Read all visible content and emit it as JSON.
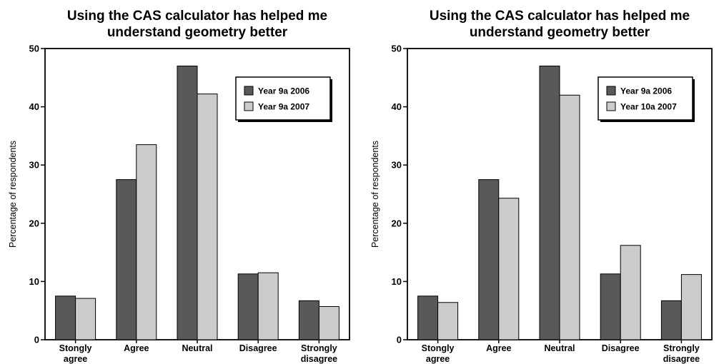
{
  "colors": {
    "series1": "#595959",
    "series2": "#cccccc",
    "axis": "#000000"
  },
  "chart_data": [
    {
      "type": "bar",
      "title": [
        "Using the CAS calculator has helped me",
        "understand geometry better"
      ],
      "ylabel": "Percentage of respondents",
      "xlabel": "",
      "ylim": [
        0,
        50
      ],
      "yticks": [
        0,
        10,
        20,
        30,
        40,
        50
      ],
      "categories": [
        [
          "Stongly",
          "agree"
        ],
        [
          "Agree"
        ],
        [
          "Neutral"
        ],
        [
          "Disagree"
        ],
        [
          "Strongly",
          "disagree"
        ]
      ],
      "series": [
        {
          "name": "Year 9a 2006",
          "values": [
            7.5,
            27.5,
            47,
            11.3,
            6.7
          ]
        },
        {
          "name": "Year 9a 2007",
          "values": [
            7.1,
            33.5,
            42.2,
            11.5,
            5.7
          ]
        }
      ],
      "legend": "top-right",
      "grid": false
    },
    {
      "type": "bar",
      "title": [
        "Using the CAS calculator has helped me",
        "understand geometry better"
      ],
      "ylabel": "Percentage of respondents",
      "xlabel": "",
      "ylim": [
        0,
        50
      ],
      "yticks": [
        0,
        10,
        20,
        30,
        40,
        50
      ],
      "categories": [
        [
          "Stongly",
          "agree"
        ],
        [
          "Agree"
        ],
        [
          "Neutral"
        ],
        [
          "Disagree"
        ],
        [
          "Strongly",
          "disagree"
        ]
      ],
      "series": [
        {
          "name": "Year 9a 2006",
          "values": [
            7.5,
            27.5,
            47,
            11.3,
            6.7
          ]
        },
        {
          "name": "Year 10a 2007",
          "values": [
            6.4,
            24.3,
            42,
            16.2,
            11.2
          ]
        }
      ],
      "legend": "top-right",
      "grid": false
    }
  ]
}
